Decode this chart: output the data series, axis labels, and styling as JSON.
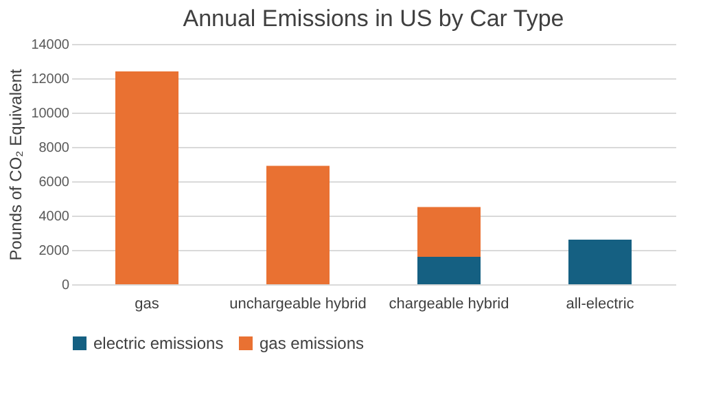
{
  "chart_data": {
    "type": "bar",
    "title": "Annual Emissions in US by Car Type",
    "ylabel": "Pounds of CO₂ Equivalent",
    "categories": [
      "gas",
      "unchargeable hybrid",
      "chargeable hybrid",
      "all-electric"
    ],
    "stacked": true,
    "series": [
      {
        "name": "electric emissions",
        "color": "#156082",
        "values": [
          null,
          null,
          1600,
          2600
        ]
      },
      {
        "name": "gas emissions",
        "color": "#e97132",
        "values": [
          12400,
          6900,
          2900,
          null
        ]
      }
    ],
    "ylim": [
      0,
      14000
    ],
    "yticks": [
      0,
      2000,
      4000,
      6000,
      8000,
      10000,
      12000,
      14000
    ],
    "grid": "y",
    "legend": "bottom"
  }
}
